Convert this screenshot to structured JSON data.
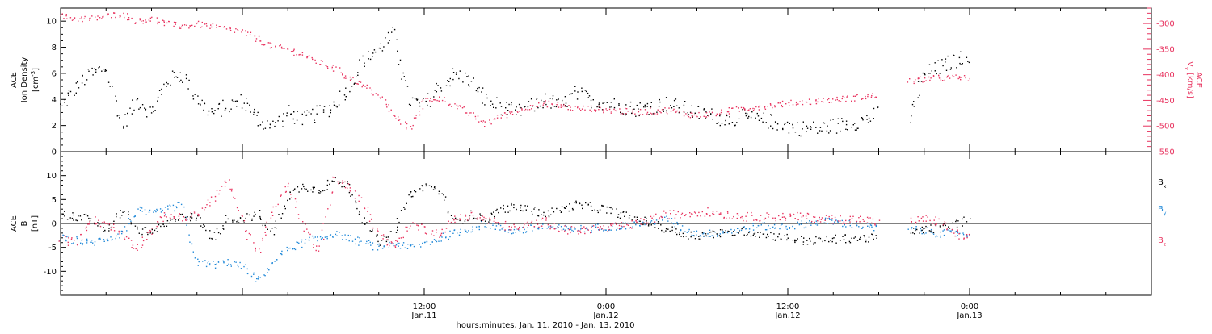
{
  "colors": {
    "black": "#000000",
    "red": "#e8335f",
    "blue": "#1f88d8"
  },
  "chart_data": [
    {
      "type": "scatter",
      "panel": "top",
      "left_axis": {
        "label_line1": "ACE",
        "label_line2": "Ion Density",
        "unit_base": "[cm",
        "unit_sup": "-3",
        "unit_close": "]",
        "ylim": [
          0,
          11
        ],
        "ticks": [
          "0",
          "2",
          "4",
          "6",
          "8",
          "10"
        ]
      },
      "right_axis": {
        "label_line1": "ACE",
        "label_base": "V",
        "label_sub": "x",
        "label_unit": "[km/s]",
        "ylim": [
          -550,
          -270
        ],
        "ticks": [
          "-550",
          "-500",
          "-450",
          "-400",
          "-350",
          "-300"
        ]
      },
      "xlim": [
        -36,
        36
      ],
      "x_unit": "hours relative to Jan.12 0:00",
      "series": [
        {
          "name": "",
          "axis": "left",
          "color_key": "black",
          "x": [
            -36,
            -35,
            -34,
            -33,
            -32,
            -31,
            -30,
            -29,
            -28,
            -27,
            -26,
            -25,
            -24,
            -23,
            -22,
            -21,
            -20,
            -19,
            -18,
            -17,
            -16,
            -15,
            -14,
            -13,
            -12,
            -11,
            -10,
            -9,
            -8,
            -7,
            -6,
            -5,
            -4,
            -3,
            -2,
            -1,
            0,
            1,
            2,
            3,
            4,
            5,
            6,
            7,
            8,
            9,
            10,
            11,
            12,
            13,
            14,
            15,
            16,
            17,
            18,
            19,
            20,
            21,
            22,
            23,
            24
          ],
          "y": [
            3.5,
            5.0,
            6.0,
            6.5,
            2.0,
            4.0,
            3.0,
            5.5,
            6.0,
            4.0,
            3.0,
            3.5,
            4.0,
            2.5,
            2.0,
            3.0,
            2.5,
            3.0,
            3.5,
            5.0,
            7.0,
            8.0,
            9.0,
            4.0,
            3.5,
            5.0,
            6.0,
            5.5,
            4.0,
            3.5,
            3.0,
            3.5,
            4.0,
            3.5,
            4.5,
            4.0,
            3.8,
            3.5,
            3.3,
            3.5,
            3.7,
            3.4,
            3.0,
            2.8,
            2.5,
            2.7,
            2.5,
            2.3,
            2.0,
            1.8,
            1.8,
            2.0,
            2.2,
            2.4,
            3.0,
            null,
            2.5,
            6.0,
            6.5,
            7.0,
            7.5
          ]
        },
        {
          "name": "",
          "axis": "right",
          "color_key": "red",
          "x": [
            -36,
            -35,
            -34,
            -33,
            -32,
            -31,
            -30,
            -29,
            -28,
            -27,
            -26,
            -25,
            -24,
            -23,
            -22,
            -21,
            -20,
            -19,
            -18,
            -17,
            -16,
            -15,
            -14,
            -13,
            -12,
            -11,
            -10,
            -9,
            -8,
            -7,
            -6,
            -5,
            -4,
            -3,
            -2,
            -1,
            0,
            1,
            2,
            3,
            4,
            5,
            6,
            7,
            8,
            9,
            10,
            11,
            12,
            13,
            14,
            15,
            16,
            17,
            18,
            19,
            20,
            21,
            22,
            23,
            24
          ],
          "y": [
            -285,
            -290,
            -290,
            -285,
            -280,
            -295,
            -290,
            -300,
            -305,
            -300,
            -305,
            -310,
            -315,
            -330,
            -345,
            -350,
            -360,
            -375,
            -385,
            -405,
            -420,
            -440,
            -480,
            -505,
            -450,
            -445,
            -460,
            -475,
            -495,
            -480,
            -470,
            -460,
            -455,
            -460,
            -465,
            -465,
            -468,
            -470,
            -472,
            -470,
            -468,
            -475,
            -478,
            -476,
            -470,
            -465,
            -462,
            -458,
            -455,
            -452,
            -450,
            -448,
            -445,
            -442,
            -440,
            null,
            -412,
            -408,
            -405,
            -405,
            -406
          ]
        }
      ]
    },
    {
      "type": "scatter",
      "panel": "bottom",
      "left_axis": {
        "label_line1": "ACE",
        "label_line2": "B",
        "unit": "[nT]",
        "ylim": [
          -15,
          15
        ],
        "ticks": [
          "-10",
          "-5",
          "0",
          "5",
          "10"
        ]
      },
      "xlim": [
        -36,
        36
      ],
      "legend": [
        {
          "base": "B",
          "sub": "x",
          "color_key": "black"
        },
        {
          "base": "B",
          "sub": "y",
          "color_key": "blue"
        },
        {
          "base": "B",
          "sub": "z",
          "color_key": "red"
        }
      ],
      "series": [
        {
          "name": "Bx",
          "color_key": "black",
          "x": [
            -36,
            -35,
            -34,
            -33,
            -32,
            -31,
            -30,
            -29,
            -28,
            -27,
            -26,
            -25,
            -24,
            -23,
            -22,
            -21,
            -20,
            -19,
            -18,
            -17,
            -16,
            -15,
            -14,
            -13,
            -12,
            -11,
            -10,
            -9,
            -8,
            -7,
            -6,
            -5,
            -4,
            -3,
            -2,
            -1,
            0,
            1,
            2,
            3,
            4,
            5,
            6,
            7,
            8,
            9,
            10,
            11,
            12,
            13,
            14,
            15,
            16,
            17,
            18,
            19,
            20,
            21,
            22,
            23,
            24
          ],
          "y": [
            2,
            1.5,
            1,
            -2,
            3,
            -1,
            -2,
            0,
            2,
            1,
            -3,
            1,
            1,
            2,
            -2,
            6,
            8,
            7,
            9,
            8,
            1,
            -4,
            -2,
            6,
            8,
            7,
            0,
            2,
            1,
            3,
            3.5,
            3,
            2,
            3,
            4,
            3.5,
            3,
            2,
            1,
            0,
            -1,
            -2,
            -2.5,
            -2,
            -2,
            -1.5,
            -2,
            -2.5,
            -3,
            -3.5,
            -3.5,
            -3.2,
            -3,
            -3,
            -3,
            null,
            -2,
            -1,
            -1,
            0,
            1
          ]
        },
        {
          "name": "By",
          "color_key": "blue",
          "x": [
            -36,
            -35,
            -34,
            -33,
            -32,
            -31,
            -30,
            -29,
            -28,
            -27,
            -26,
            -25,
            -24,
            -23,
            -22,
            -21,
            -20,
            -19,
            -18,
            -17,
            -16,
            -15,
            -14,
            -13,
            -12,
            -11,
            -10,
            -9,
            -8,
            -7,
            -6,
            -5,
            -4,
            -3,
            -2,
            -1,
            0,
            1,
            2,
            3,
            4,
            5,
            6,
            7,
            8,
            9,
            10,
            11,
            12,
            13,
            14,
            15,
            16,
            17,
            18,
            19,
            20,
            21,
            22,
            23,
            24
          ],
          "y": [
            -3,
            -3.5,
            -4,
            -3,
            -2,
            3,
            2,
            3,
            4,
            -8,
            -8.5,
            -8,
            -9,
            -12,
            -8,
            -5,
            -4,
            -3,
            -2,
            -3,
            -4,
            -5,
            -4,
            -5,
            -4,
            -3,
            -2,
            -1,
            0,
            -1,
            -1.5,
            -1,
            -0.5,
            -1,
            -1,
            -1,
            -0.5,
            -0.5,
            0,
            0.5,
            1,
            -1,
            -2,
            -2,
            -1.5,
            -1,
            -0.5,
            -0.5,
            -0.5,
            0,
            0.5,
            0.5,
            0,
            -0.5,
            -1,
            null,
            -1,
            -1.5,
            -2,
            -2,
            -2
          ]
        },
        {
          "name": "Bz",
          "color_key": "red",
          "x": [
            -36,
            -35,
            -34,
            -33,
            -32,
            -31,
            -30,
            -29,
            -28,
            -27,
            -26,
            -25,
            -24,
            -23,
            -22,
            -21,
            -20,
            -19,
            -18,
            -17,
            -16,
            -15,
            -14,
            -13,
            -12,
            -11,
            -10,
            -9,
            -8,
            -7,
            -6,
            -5,
            -4,
            -3,
            -2,
            -1,
            0,
            1,
            2,
            3,
            4,
            5,
            6,
            7,
            8,
            9,
            10,
            11,
            12,
            13,
            14,
            15,
            16,
            17,
            18,
            19,
            20,
            21,
            22,
            23,
            24
          ],
          "y": [
            -3,
            -4,
            1,
            0,
            -2,
            -5,
            -1,
            2,
            1,
            2,
            5,
            9,
            0,
            -6,
            3,
            8,
            0,
            -6,
            9,
            8,
            4,
            -2,
            -5,
            0,
            -1,
            -2,
            1,
            2,
            1,
            0,
            -1,
            0,
            0.5,
            -1,
            -1.5,
            -1,
            -1,
            -0.5,
            0,
            1,
            2,
            2,
            2.5,
            2.5,
            2,
            1.5,
            1.5,
            1.5,
            1.5,
            1.5,
            1.2,
            1,
            1,
            1,
            0,
            null,
            0.5,
            1,
            0.5,
            -2,
            -3
          ]
        }
      ]
    }
  ],
  "x_axis": {
    "ticks": [
      {
        "hour": -12,
        "time": "12:00",
        "date": "Jan.11"
      },
      {
        "hour": 0,
        "time": "0:00",
        "date": "Jan.12"
      },
      {
        "hour": 12,
        "time": "12:00",
        "date": "Jan.12"
      },
      {
        "hour": 24,
        "time": "0:00",
        "date": "Jan.13"
      }
    ],
    "title": "hours:minutes, Jan. 11, 2010 - Jan. 13, 2010"
  }
}
